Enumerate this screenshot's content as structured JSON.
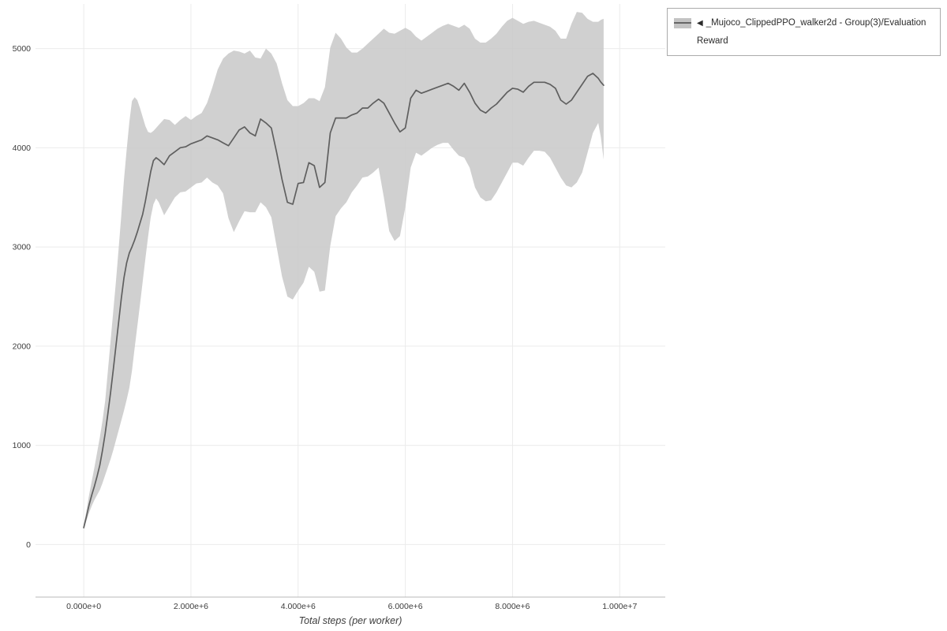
{
  "page": {
    "background": "#ffffff"
  },
  "legend": {
    "arrow": "◀",
    "label": "_Mujoco_ClippedPPO_walker2d - Group(3)/Evaluation Reward",
    "swatch_band_color": "#c3c3c3",
    "swatch_line_color": "#666666"
  },
  "chart_data": {
    "type": "line",
    "title": "",
    "xlabel": "Total steps (per worker)",
    "ylabel": "",
    "grid": true,
    "legend_position": "top-right-outside",
    "xlim": [
      -900000,
      10850000
    ],
    "ylim": [
      -530,
      5450
    ],
    "x_ticks": [
      {
        "value": 0,
        "label": "0.000e+0"
      },
      {
        "value": 2000000,
        "label": "2.000e+6"
      },
      {
        "value": 4000000,
        "label": "4.000e+6"
      },
      {
        "value": 6000000,
        "label": "6.000e+6"
      },
      {
        "value": 8000000,
        "label": "8.000e+6"
      },
      {
        "value": 10000000,
        "label": "1.000e+7"
      }
    ],
    "y_ticks": [
      {
        "value": 0,
        "label": "0"
      },
      {
        "value": 1000,
        "label": "1000"
      },
      {
        "value": 2000,
        "label": "2000"
      },
      {
        "value": 3000,
        "label": "3000"
      },
      {
        "value": 4000,
        "label": "4000"
      },
      {
        "value": 5000,
        "label": "5000"
      }
    ],
    "x_scale": 1000000,
    "series": [
      {
        "name": "_Mujoco_ClippedPPO_walker2d - Group(3)/Evaluation Reward",
        "color": "#5f5f5f",
        "band_color": "#c8c8c8",
        "band_opacity": 0.85,
        "x": [
          0,
          0.05,
          0.1,
          0.15,
          0.2,
          0.25,
          0.3,
          0.35,
          0.4,
          0.45,
          0.5,
          0.55,
          0.6,
          0.65,
          0.7,
          0.75,
          0.8,
          0.85,
          0.9,
          0.95,
          1,
          1.05,
          1.1,
          1.15,
          1.2,
          1.25,
          1.3,
          1.35,
          1.4,
          1.5,
          1.6,
          1.7,
          1.8,
          1.9,
          2,
          2.1,
          2.2,
          2.3,
          2.4,
          2.5,
          2.6,
          2.7,
          2.8,
          2.9,
          3,
          3.1,
          3.2,
          3.3,
          3.4,
          3.5,
          3.6,
          3.7,
          3.8,
          3.9,
          4,
          4.1,
          4.2,
          4.3,
          4.4,
          4.5,
          4.6,
          4.7,
          4.8,
          4.9,
          5,
          5.1,
          5.2,
          5.3,
          5.4,
          5.5,
          5.6,
          5.7,
          5.8,
          5.9,
          6,
          6.1,
          6.2,
          6.3,
          6.4,
          6.5,
          6.6,
          6.7,
          6.8,
          6.9,
          7,
          7.1,
          7.2,
          7.3,
          7.4,
          7.5,
          7.6,
          7.7,
          7.8,
          7.9,
          8,
          8.1,
          8.2,
          8.3,
          8.4,
          8.5,
          8.6,
          8.7,
          8.8,
          8.9,
          9,
          9.1,
          9.2,
          9.3,
          9.4,
          9.5,
          9.6,
          9.65,
          9.7
        ],
        "mean": [
          170,
          280,
          400,
          500,
          590,
          690,
          800,
          950,
          1120,
          1320,
          1530,
          1760,
          2000,
          2240,
          2480,
          2690,
          2840,
          2940,
          3000,
          3070,
          3150,
          3240,
          3330,
          3460,
          3610,
          3760,
          3870,
          3900,
          3880,
          3830,
          3920,
          3960,
          4000,
          4010,
          4040,
          4060,
          4080,
          4120,
          4100,
          4080,
          4050,
          4020,
          4100,
          4180,
          4210,
          4150,
          4120,
          4290,
          4250,
          4200,
          3950,
          3680,
          3450,
          3430,
          3640,
          3650,
          3850,
          3820,
          3600,
          3650,
          4150,
          4300,
          4300,
          4300,
          4330,
          4350,
          4400,
          4400,
          4450,
          4490,
          4450,
          4350,
          4250,
          4160,
          4200,
          4500,
          4580,
          4550,
          4570,
          4590,
          4610,
          4630,
          4650,
          4620,
          4580,
          4650,
          4560,
          4450,
          4380,
          4350,
          4400,
          4440,
          4500,
          4560,
          4600,
          4590,
          4560,
          4620,
          4660,
          4660,
          4660,
          4640,
          4600,
          4480,
          4440,
          4480,
          4560,
          4640,
          4720,
          4750,
          4700,
          4660,
          4630
        ],
        "lower": [
          150,
          240,
          320,
          390,
          450,
          500,
          550,
          620,
          700,
          780,
          860,
          950,
          1050,
          1150,
          1250,
          1350,
          1460,
          1580,
          1750,
          1980,
          2200,
          2420,
          2650,
          2880,
          3100,
          3300,
          3430,
          3490,
          3450,
          3320,
          3410,
          3500,
          3550,
          3560,
          3600,
          3640,
          3650,
          3700,
          3650,
          3620,
          3540,
          3290,
          3150,
          3260,
          3360,
          3350,
          3350,
          3450,
          3400,
          3300,
          3000,
          2700,
          2500,
          2470,
          2560,
          2640,
          2800,
          2750,
          2550,
          2560,
          3010,
          3310,
          3390,
          3450,
          3550,
          3620,
          3700,
          3710,
          3750,
          3800,
          3500,
          3160,
          3060,
          3110,
          3400,
          3800,
          3950,
          3920,
          3960,
          4000,
          4030,
          4050,
          4050,
          3980,
          3920,
          3900,
          3800,
          3600,
          3500,
          3460,
          3470,
          3550,
          3650,
          3750,
          3850,
          3850,
          3820,
          3900,
          3970,
          3970,
          3960,
          3900,
          3800,
          3700,
          3620,
          3600,
          3650,
          3750,
          3950,
          4150,
          4250,
          4100,
          3880
        ],
        "upper": [
          200,
          340,
          500,
          640,
          780,
          930,
          1080,
          1250,
          1450,
          1750,
          2050,
          2350,
          2650,
          2980,
          3320,
          3680,
          3980,
          4260,
          4470,
          4510,
          4480,
          4400,
          4310,
          4220,
          4160,
          4150,
          4170,
          4200,
          4230,
          4290,
          4280,
          4230,
          4280,
          4320,
          4280,
          4320,
          4350,
          4450,
          4610,
          4790,
          4900,
          4950,
          4980,
          4970,
          4950,
          4980,
          4910,
          4900,
          5000,
          4950,
          4850,
          4650,
          4480,
          4420,
          4420,
          4450,
          4500,
          4500,
          4470,
          4610,
          5010,
          5160,
          5100,
          5010,
          4960,
          4960,
          5000,
          5050,
          5100,
          5150,
          5200,
          5160,
          5150,
          5180,
          5210,
          5180,
          5120,
          5080,
          5120,
          5160,
          5200,
          5230,
          5250,
          5230,
          5210,
          5240,
          5200,
          5100,
          5060,
          5060,
          5100,
          5150,
          5220,
          5280,
          5310,
          5280,
          5250,
          5270,
          5280,
          5260,
          5240,
          5220,
          5180,
          5100,
          5100,
          5250,
          5370,
          5360,
          5300,
          5270,
          5270,
          5290,
          5300
        ]
      }
    ]
  }
}
